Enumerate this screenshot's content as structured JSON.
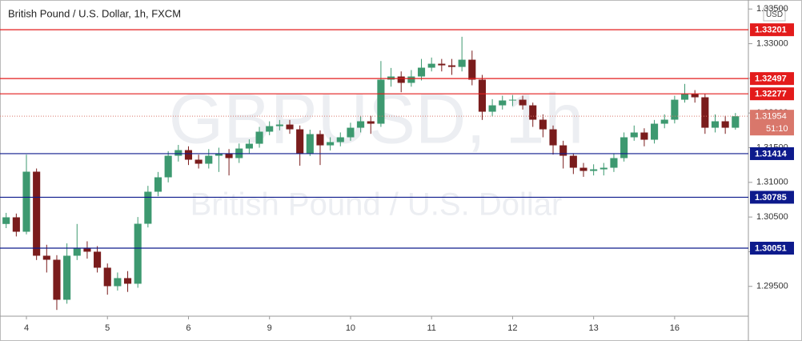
{
  "chart_data": {
    "type": "candlestick",
    "title": "British Pound / U.S. Dollar, 1h, FXCM",
    "watermark": "GBPUSD, 1h",
    "watermark_subtitle": "British Pound / U.S. Dollar",
    "currency": "USD",
    "up_color": "#3d9970",
    "down_color": "#7a1c1c",
    "x": [
      -0.25,
      -0.125,
      0,
      0.125,
      0.25,
      0.375,
      0.5,
      0.625,
      0.75,
      0.875,
      1,
      1.125,
      1.25,
      1.375,
      1.5,
      1.625,
      1.75,
      1.875,
      2,
      2.125,
      2.25,
      2.375,
      2.5,
      2.625,
      2.75,
      2.875,
      3,
      3.125,
      3.25,
      3.375,
      3.5,
      3.625,
      3.75,
      3.875,
      4,
      4.125,
      4.25,
      4.375,
      4.5,
      4.625,
      4.75,
      4.875,
      5,
      5.125,
      5.25,
      5.375,
      5.5,
      5.625,
      5.75,
      5.875,
      6,
      6.125,
      6.25,
      6.375,
      6.5,
      6.625,
      6.75,
      6.875,
      7,
      7.125,
      7.25,
      7.375,
      7.5,
      7.625,
      7.75,
      7.875,
      8,
      8.125,
      8.25,
      8.375,
      8.5,
      8.625,
      8.75
    ],
    "open": [
      1.304,
      1.30496,
      1.30288,
      1.31154,
      1.29942,
      1.29884,
      1.29307,
      1.29942,
      1.30057,
      1.3,
      1.29769,
      1.29503,
      1.29619,
      1.29538,
      1.30403,
      1.30865,
      1.31073,
      1.31384,
      1.31465,
      1.31327,
      1.31269,
      1.31384,
      1.31419,
      1.3135,
      1.31488,
      1.31557,
      1.31731,
      1.31811,
      1.31834,
      1.31765,
      1.31419,
      1.31696,
      1.31534,
      1.31581,
      1.3165,
      1.31788,
      1.31881,
      1.31846,
      1.32481,
      1.32527,
      1.32435,
      1.32527,
      1.32654,
      1.32711,
      1.32688,
      1.32665,
      1.32769,
      1.32481,
      1.32019,
      1.32111,
      1.32181,
      1.32192,
      1.32111,
      1.31904,
      1.31765,
      1.31534,
      1.31384,
      1.31211,
      1.31165,
      1.31188,
      1.31211,
      1.3135,
      1.3165,
      1.31719,
      1.31615,
      1.31846,
      1.31904,
      1.32192,
      1.32273,
      1.32227,
      1.31788,
      1.31881,
      1.31788
    ],
    "high": [
      1.3056,
      1.3055,
      1.314,
      1.312,
      1.301,
      1.2995,
      1.3012,
      1.304,
      1.3015,
      1.3008,
      1.2983,
      1.297,
      1.2972,
      1.305,
      1.3095,
      1.3115,
      1.3145,
      1.3154,
      1.3152,
      1.314,
      1.3148,
      1.315,
      1.3148,
      1.3156,
      1.3162,
      1.318,
      1.3188,
      1.319,
      1.319,
      1.3182,
      1.3176,
      1.3175,
      1.3165,
      1.3172,
      1.3186,
      1.3195,
      1.3196,
      1.3275,
      1.3265,
      1.326,
      1.3262,
      1.3278,
      1.328,
      1.3278,
      1.3278,
      1.331,
      1.329,
      1.3255,
      1.322,
      1.3225,
      1.3226,
      1.3225,
      1.3215,
      1.3198,
      1.3182,
      1.316,
      1.3142,
      1.3128,
      1.3126,
      1.3128,
      1.3142,
      1.3172,
      1.3182,
      1.3178,
      1.319,
      1.3198,
      1.3225,
      1.3242,
      1.3233,
      1.3228,
      1.3198,
      1.3196,
      1.32
    ],
    "low": [
      1.3034,
      1.3022,
      1.3025,
      1.2988,
      1.297,
      1.2916,
      1.2925,
      1.2988,
      1.299,
      1.297,
      1.2938,
      1.2944,
      1.2942,
      1.2948,
      1.3035,
      1.308,
      1.31,
      1.313,
      1.3125,
      1.312,
      1.312,
      1.3115,
      1.311,
      1.3128,
      1.3142,
      1.315,
      1.3168,
      1.3175,
      1.317,
      1.3124,
      1.3138,
      1.3125,
      1.3146,
      1.3152,
      1.316,
      1.3172,
      1.317,
      1.318,
      1.3238,
      1.323,
      1.3238,
      1.3247,
      1.326,
      1.326,
      1.3255,
      1.326,
      1.324,
      1.319,
      1.3195,
      1.3205,
      1.321,
      1.3205,
      1.318,
      1.3165,
      1.314,
      1.312,
      1.3112,
      1.3108,
      1.311,
      1.311,
      1.3115,
      1.313,
      1.316,
      1.3152,
      1.3156,
      1.3178,
      1.3185,
      1.3215,
      1.3215,
      1.317,
      1.3172,
      1.317,
      1.3176
    ],
    "close": [
      1.30496,
      1.30288,
      1.31154,
      1.29942,
      1.29884,
      1.29307,
      1.29942,
      1.30057,
      1.3,
      1.29769,
      1.29503,
      1.29619,
      1.29538,
      1.30403,
      1.30865,
      1.31073,
      1.31384,
      1.31465,
      1.31327,
      1.31269,
      1.31384,
      1.31419,
      1.3135,
      1.31488,
      1.31557,
      1.31731,
      1.31811,
      1.31834,
      1.31765,
      1.31419,
      1.31696,
      1.31534,
      1.31581,
      1.3165,
      1.31788,
      1.31881,
      1.31846,
      1.32481,
      1.32527,
      1.32435,
      1.32527,
      1.32654,
      1.32711,
      1.32688,
      1.32665,
      1.32769,
      1.32481,
      1.32019,
      1.32111,
      1.32181,
      1.32192,
      1.32111,
      1.31904,
      1.31765,
      1.31534,
      1.31384,
      1.31211,
      1.31165,
      1.31188,
      1.31211,
      1.3135,
      1.3165,
      1.31719,
      1.31615,
      1.31846,
      1.31904,
      1.32192,
      1.32273,
      1.32227,
      1.31788,
      1.31881,
      1.31788,
      1.31954
    ],
    "xlim": [
      -0.326,
      8.91
    ],
    "xticks": [
      {
        "value": 0,
        "label": "4"
      },
      {
        "value": 1,
        "label": "5"
      },
      {
        "value": 2,
        "label": "6"
      },
      {
        "value": 3,
        "label": "9"
      },
      {
        "value": 4,
        "label": "10"
      },
      {
        "value": 5,
        "label": "11"
      },
      {
        "value": 6,
        "label": "12"
      },
      {
        "value": 7,
        "label": "13"
      },
      {
        "value": 8,
        "label": "16"
      }
    ],
    "ylim": [
      1.2907,
      1.3363
    ],
    "yticks": [
      {
        "value": 1.295,
        "label": "1.29500"
      },
      {
        "value": 1.3,
        "label": "1.30000"
      },
      {
        "value": 1.305,
        "label": "1.30500"
      },
      {
        "value": 1.31,
        "label": "1.31000"
      },
      {
        "value": 1.315,
        "label": "1.31500"
      },
      {
        "value": 1.32,
        "label": "1.32000"
      },
      {
        "value": 1.325,
        "label": "1.32500"
      },
      {
        "value": 1.33,
        "label": "1.33000"
      },
      {
        "value": 1.335,
        "label": "1.33500"
      }
    ],
    "levels": [
      {
        "value": 1.33201,
        "color": "#e31b1b"
      },
      {
        "value": 1.32497,
        "color": "#e31b1b"
      },
      {
        "value": 1.32277,
        "color": "#e31b1b"
      },
      {
        "value": 1.31414,
        "color": "#0d1a8c"
      },
      {
        "value": 1.30785,
        "color": "#0d1a8c"
      },
      {
        "value": 1.30051,
        "color": "#0d1a8c"
      }
    ],
    "last_price": {
      "value": 1.31954,
      "countdown": "51:10",
      "color": "#d9776b"
    }
  }
}
